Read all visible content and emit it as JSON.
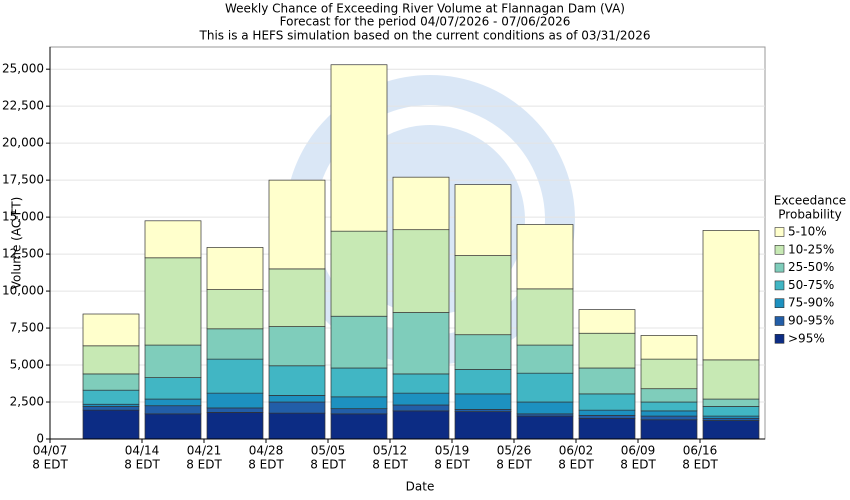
{
  "chart_data": {
    "type": "stacked_bar",
    "title": "Weekly Chance of Exceeding River Volume at Flannagan Dam (VA)",
    "subtitle": "Forecast for the period 04/07/2026 - 07/06/2026",
    "note": "This is a HEFS simulation based on the current conditions as of 03/31/2026",
    "x_label": "Date",
    "y_label": "Volume (AC-FT)",
    "categories": [
      "04/07",
      "04/14",
      "04/21",
      "04/28",
      "05/05",
      "05/12",
      "05/19",
      "05/26",
      "06/02",
      "06/09",
      "06/16"
    ],
    "category_time": "8 EDT",
    "legend_title": [
      "Exceedance",
      "Probability"
    ],
    "legend": "right",
    "grid": true,
    "ylim": [
      0,
      26500
    ],
    "yticks": [
      0,
      {
        "value": 2500,
        "label": "2,500"
      },
      {
        "value": 5000,
        "label": "5,000"
      },
      {
        "value": 7500,
        "label": "7,500"
      },
      {
        "value": 10000,
        "label": "10,000"
      },
      {
        "value": 12500,
        "label": "12,500"
      },
      {
        "value": 15000,
        "label": "15,000"
      },
      {
        "value": 17500,
        "label": "17,500"
      },
      {
        "value": 20000,
        "label": "20,000"
      },
      {
        "value": 22500,
        "label": "22,500"
      },
      {
        "value": 25000,
        "label": "25,000"
      }
    ],
    "series": [
      {
        "name": ">95%",
        "color": "#0c2c84",
        "values": [
          1950,
          1700,
          1800,
          1750,
          1700,
          1900,
          1850,
          1550,
          1400,
          1300,
          1250
        ]
      },
      {
        "name": "90-95%",
        "color": "#225ea8",
        "values": [
          250,
          550,
          300,
          750,
          350,
          400,
          150,
          150,
          200,
          250,
          150
        ]
      },
      {
        "name": "75-90%",
        "color": "#1d91c0",
        "values": [
          150,
          450,
          1000,
          450,
          800,
          800,
          1050,
          800,
          350,
          350,
          150
        ]
      },
      {
        "name": "50-75%",
        "color": "#41b6c4",
        "values": [
          950,
          1450,
          2300,
          2000,
          1950,
          1300,
          1650,
          1950,
          1100,
          600,
          650
        ]
      },
      {
        "name": "25-50%",
        "color": "#7fcdbb",
        "values": [
          1100,
          2200,
          2050,
          2650,
          3500,
          4150,
          2350,
          1900,
          1750,
          900,
          500
        ]
      },
      {
        "name": "10-25%",
        "color": "#c7e9b4",
        "values": [
          1900,
          5900,
          2650,
          3900,
          5750,
          5600,
          5350,
          3800,
          2350,
          2000,
          2650
        ]
      },
      {
        "name": "5-10%",
        "color": "#ffffcc",
        "values": [
          2150,
          2500,
          2850,
          6000,
          11250,
          3550,
          4800,
          4350,
          1600,
          1600,
          8750
        ]
      }
    ]
  }
}
